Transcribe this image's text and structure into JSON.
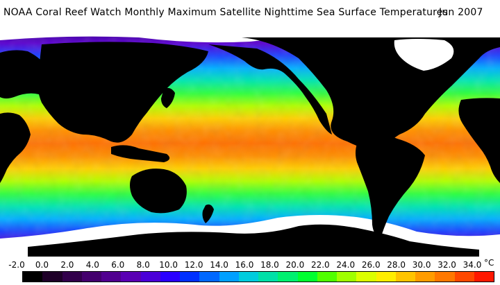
{
  "header": {
    "title": "NOAA Coral Reef Watch Monthly Maximum Satellite Nighttime Sea Surface Temperatures",
    "date": "Jun 2007"
  },
  "legend": {
    "ticks": [
      "-2.0",
      "0.0",
      "2.0",
      "4.0",
      "6.0",
      "8.0",
      "10.0",
      "12.0",
      "14.0",
      "16.0",
      "18.0",
      "20.0",
      "22.0",
      "24.0",
      "26.0",
      "28.0",
      "30.0",
      "32.0",
      "34.0"
    ],
    "unit": "°C",
    "colors": [
      "#000000",
      "#1e0028",
      "#32004b",
      "#44006e",
      "#510090",
      "#5a00b4",
      "#4b00d8",
      "#2a00ff",
      "#0030ff",
      "#0068ff",
      "#00a0ff",
      "#00ccdd",
      "#00e0a8",
      "#00f070",
      "#00ff30",
      "#50ff00",
      "#a0ff00",
      "#dcff00",
      "#ffee00",
      "#ffc400",
      "#ff9c00",
      "#ff7800",
      "#ff4800",
      "#ff1800"
    ]
  },
  "map": {
    "land_color": "#000000",
    "ice_color": "#ffffff",
    "ocean_gradient": [
      "#3a0090",
      "#5a00d0",
      "#1a40ff",
      "#00b0ff",
      "#00e6b0",
      "#30ff40",
      "#b0ff00",
      "#ffd000",
      "#ff9000",
      "#ff7000"
    ]
  }
}
